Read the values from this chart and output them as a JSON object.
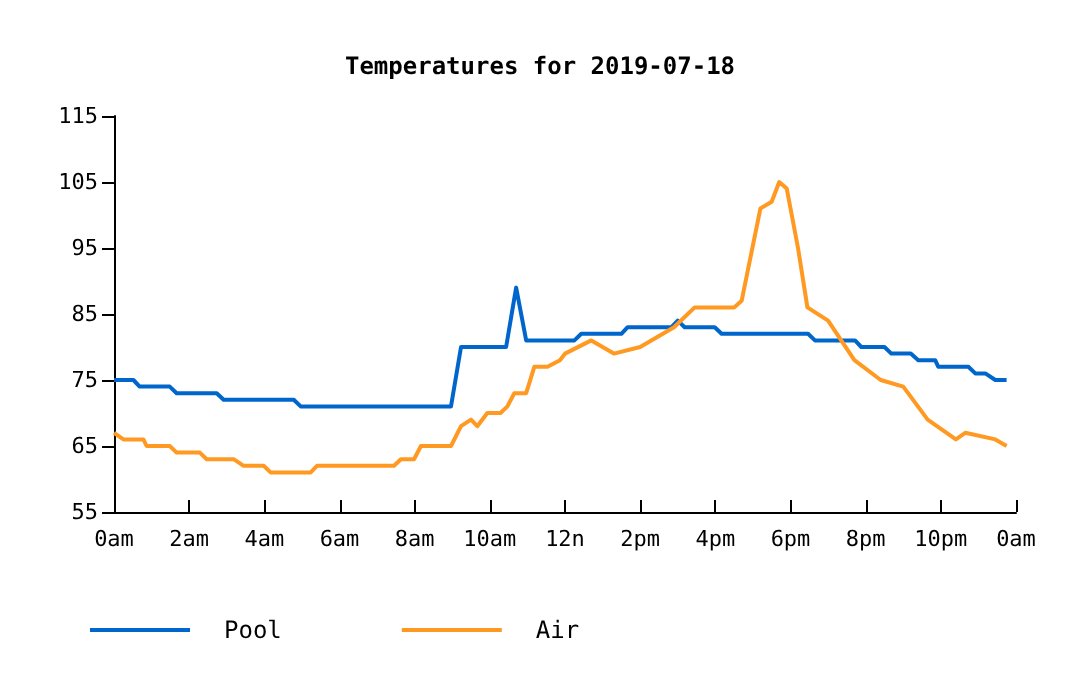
{
  "chart_data": {
    "type": "line",
    "title": "Temperatures for 2019-07-18",
    "xlim": [
      "2019-07-18T00:00",
      "2019-07-19T00:00"
    ],
    "xticks": [
      {
        "value": "2019-07-18T00:00",
        "label": "0am"
      },
      {
        "value": "2019-07-18T02:00",
        "label": "2am"
      },
      {
        "value": "2019-07-18T04:00",
        "label": "4am"
      },
      {
        "value": "2019-07-18T06:00",
        "label": "6am"
      },
      {
        "value": "2019-07-18T08:00",
        "label": "8am"
      },
      {
        "value": "2019-07-18T10:00",
        "label": "10am"
      },
      {
        "value": "2019-07-18T12:00",
        "label": "12n"
      },
      {
        "value": "2019-07-18T14:00",
        "label": "2pm"
      },
      {
        "value": "2019-07-18T16:00",
        "label": "4pm"
      },
      {
        "value": "2019-07-18T18:00",
        "label": "6pm"
      },
      {
        "value": "2019-07-18T20:00",
        "label": "8pm"
      },
      {
        "value": "2019-07-18T22:00",
        "label": "10pm"
      },
      {
        "value": "2019-07-19T00:00",
        "label": "0am"
      }
    ],
    "ylim": [
      55,
      115
    ],
    "yticks": [
      55,
      65,
      75,
      85,
      95,
      105,
      115
    ],
    "grid": false,
    "legend": "bottom left",
    "marker": "none",
    "line_style": "solid",
    "series": [
      {
        "name": "Pool",
        "color": "#0066cc",
        "x": [
          "2019-07-18T00:00",
          "2019-07-18T00:31",
          "2019-07-18T00:41",
          "2019-07-18T01:29",
          "2019-07-18T01:40",
          "2019-07-18T02:44",
          "2019-07-18T02:55",
          "2019-07-18T04:47",
          "2019-07-18T04:58",
          "2019-07-18T08:58",
          "2019-07-18T09:14",
          "2019-07-18T10:26",
          "2019-07-18T10:42",
          "2019-07-18T10:58",
          "2019-07-18T12:15",
          "2019-07-18T12:26",
          "2019-07-18T13:30",
          "2019-07-18T13:40",
          "2019-07-18T14:50",
          "2019-07-18T15:00",
          "2019-07-18T15:11",
          "2019-07-18T15:59",
          "2019-07-18T16:10",
          "2019-07-18T18:28",
          "2019-07-18T18:39",
          "2019-07-18T19:43",
          "2019-07-18T19:53",
          "2019-07-18T20:30",
          "2019-07-18T20:41",
          "2019-07-18T21:12",
          "2019-07-18T21:24",
          "2019-07-18T21:51",
          "2019-07-18T21:56",
          "2019-07-18T22:44",
          "2019-07-18T22:55",
          "2019-07-18T23:11",
          "2019-07-18T23:27",
          "2019-07-18T23:45"
        ],
        "values": [
          75,
          75,
          74,
          74,
          73,
          73,
          72,
          72,
          71,
          71,
          80,
          80,
          89,
          81,
          81,
          82,
          82,
          83,
          83,
          84,
          83,
          83,
          82,
          82,
          81,
          81,
          80,
          80,
          79,
          79,
          78,
          78,
          77,
          77,
          76,
          76,
          75,
          75
        ]
      },
      {
        "name": "Air",
        "color": "#ff9922",
        "x": [
          "2019-07-18T00:00",
          "2019-07-18T00:15",
          "2019-07-18T00:31",
          "2019-07-18T00:47",
          "2019-07-18T00:52",
          "2019-07-18T01:29",
          "2019-07-18T01:40",
          "2019-07-18T02:17",
          "2019-07-18T02:28",
          "2019-07-18T03:11",
          "2019-07-18T03:27",
          "2019-07-18T03:59",
          "2019-07-18T04:10",
          "2019-07-18T05:14",
          "2019-07-18T05:24",
          "2019-07-18T07:27",
          "2019-07-18T07:38",
          "2019-07-18T07:59",
          "2019-07-18T08:10",
          "2019-07-18T08:58",
          "2019-07-18T09:14",
          "2019-07-18T09:30",
          "2019-07-18T09:40",
          "2019-07-18T09:56",
          "2019-07-18T10:17",
          "2019-07-18T10:28",
          "2019-07-18T10:39",
          "2019-07-18T10:58",
          "2019-07-18T11:11",
          "2019-07-18T11:32",
          "2019-07-18T11:52",
          "2019-07-18T12:00",
          "2019-07-18T12:42",
          "2019-07-18T13:18",
          "2019-07-18T14:00",
          "2019-07-18T14:54",
          "2019-07-18T15:27",
          "2019-07-18T16:30",
          "2019-07-18T16:42",
          "2019-07-18T17:12",
          "2019-07-18T17:30",
          "2019-07-18T17:42",
          "2019-07-18T17:54",
          "2019-07-18T18:12",
          "2019-07-18T18:27",
          "2019-07-18T19:00",
          "2019-07-18T19:42",
          "2019-07-18T20:24",
          "2019-07-18T21:00",
          "2019-07-18T21:39",
          "2019-07-18T22:24",
          "2019-07-18T22:39",
          "2019-07-18T23:27",
          "2019-07-18T23:45"
        ],
        "values": [
          67,
          66,
          66,
          66,
          65,
          65,
          64,
          64,
          63,
          63,
          62,
          62,
          61,
          61,
          62,
          62,
          63,
          63,
          65,
          65,
          68,
          69,
          68,
          70,
          70,
          71,
          73,
          73,
          77,
          77,
          78,
          79,
          81,
          79,
          80,
          83,
          86,
          86,
          87,
          101,
          102,
          105,
          104,
          95,
          86,
          84,
          78,
          75,
          74,
          69,
          66,
          67,
          66,
          65
        ]
      }
    ]
  }
}
